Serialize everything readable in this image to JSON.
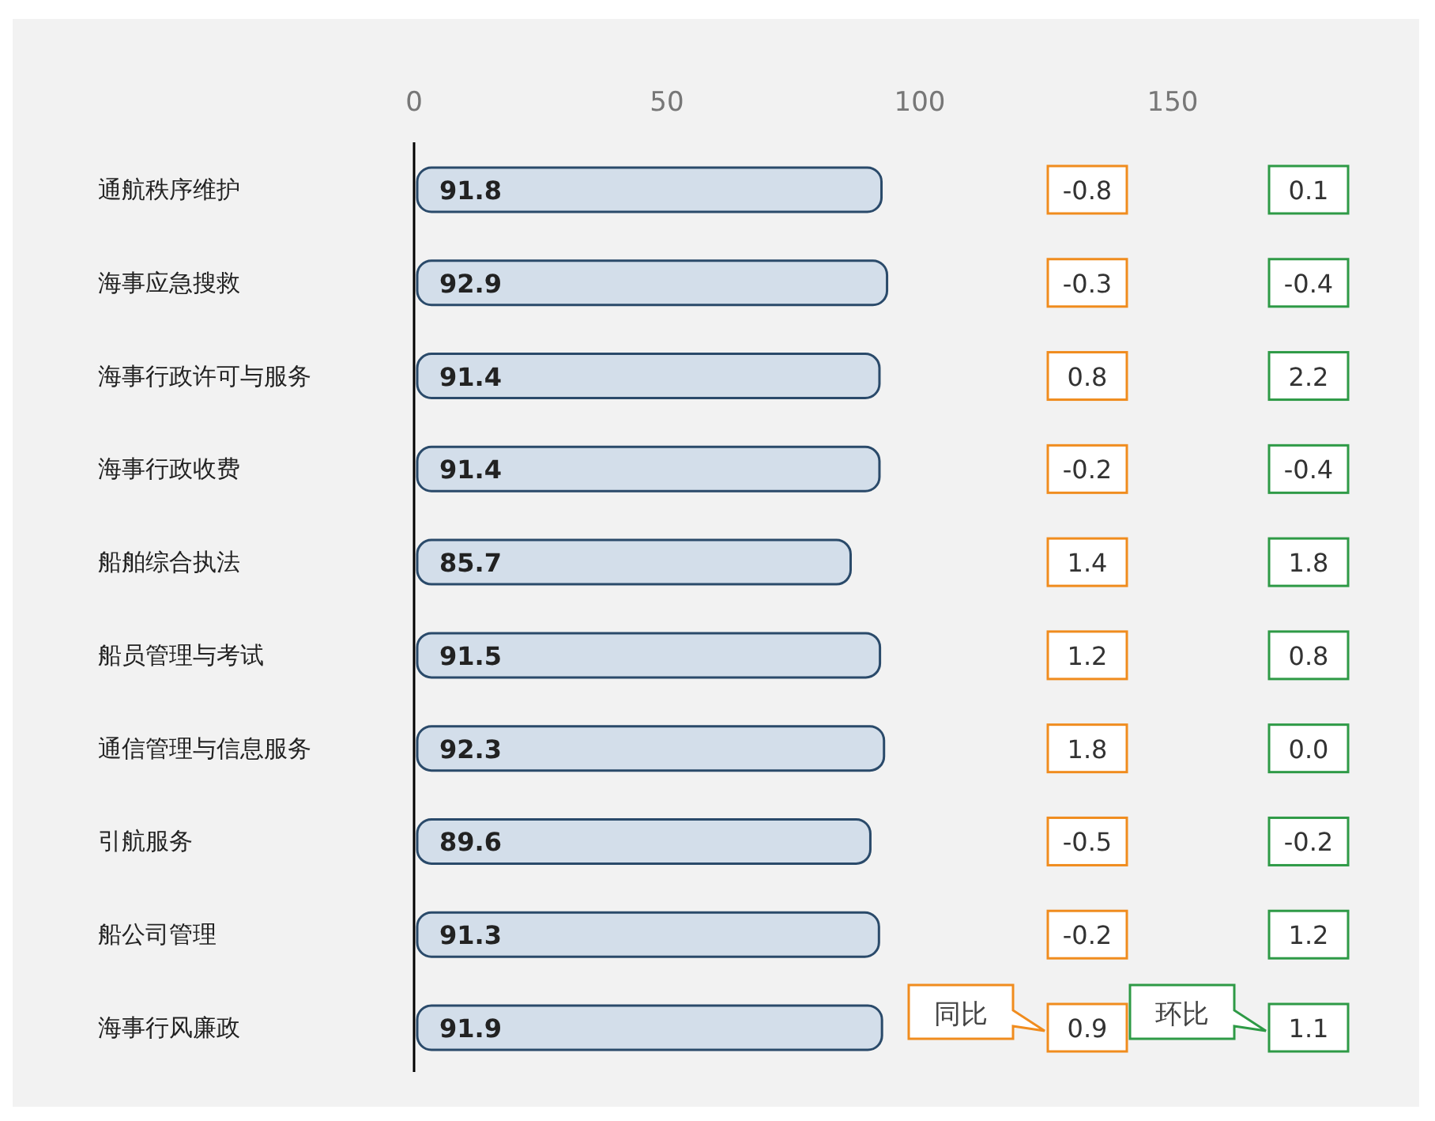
{
  "chart_data": {
    "type": "bar",
    "orientation": "horizontal",
    "categories": [
      "通航秩序维护",
      "海事应急搜救",
      "海事行政许可与服务",
      "海事行政收费",
      "船舶综合执法",
      "船员管理与考试",
      "通信管理与信息服务",
      "引航服务",
      "船公司管理",
      "海事行风廉政"
    ],
    "values": [
      91.8,
      92.9,
      91.4,
      91.4,
      85.7,
      91.5,
      92.3,
      89.6,
      91.3,
      91.9
    ],
    "color": "#d3deea",
    "data_labels": true,
    "xlim": [
      0,
      150
    ],
    "xticks": [
      0,
      50,
      100,
      150
    ],
    "grid": false,
    "annotations": [
      "-0.8",
      "0.1",
      "-0.3",
      "-0.4",
      "0.8",
      "2.2",
      "-0.2",
      "-0.4",
      "1.4",
      "1.8",
      "1.2",
      "0.8",
      "1.8",
      "0.0",
      "-0.5",
      "-0.2",
      "-0.2",
      "1.2",
      "0.9",
      "1.1",
      "同比",
      "环比"
    ]
  }
}
